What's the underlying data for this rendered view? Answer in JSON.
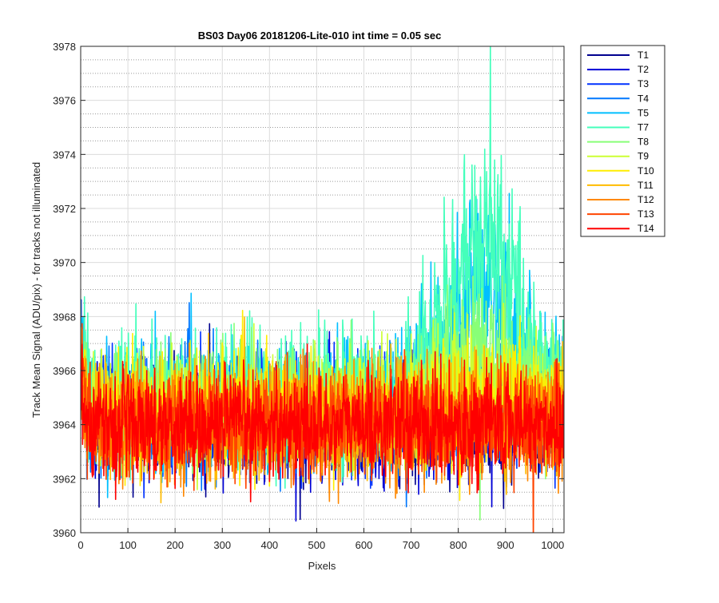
{
  "chart_data": {
    "type": "line",
    "title": "BS03 Day06 20181206-Lite-010 int time = 0.05 sec",
    "xlabel": "Pixels",
    "ylabel": "Track Mean Signal (ADU/pix) - for tracks not illuminated",
    "xlim": [
      0,
      1024
    ],
    "ylim": [
      3960,
      3978
    ],
    "xticks": [
      0,
      100,
      200,
      300,
      400,
      500,
      600,
      700,
      800,
      900,
      1000
    ],
    "yticks": [
      3960,
      3962,
      3964,
      3966,
      3968,
      3970,
      3972,
      3974,
      3976,
      3978
    ],
    "grid": "major and minor",
    "legend_position": "outside-right",
    "n_points_per_series": 1024,
    "series": [
      {
        "name": "T1",
        "color": "#00008f",
        "base": 3964.2,
        "noise": 1.0,
        "hump": 0.0
      },
      {
        "name": "T2",
        "color": "#0000d6",
        "base": 3964.1,
        "noise": 1.0,
        "hump": 0.0
      },
      {
        "name": "T3",
        "color": "#0032ff",
        "base": 3964.3,
        "noise": 1.0,
        "hump": 0.0
      },
      {
        "name": "T4",
        "color": "#0078ff",
        "base": 3964.5,
        "noise": 1.05,
        "hump": 0.5
      },
      {
        "name": "T5",
        "color": "#00bfff",
        "base": 3964.7,
        "noise": 1.1,
        "hump": 4.5
      },
      {
        "name": "T7",
        "color": "#44ffbb",
        "base": 3965.0,
        "noise": 1.15,
        "hump": 5.5
      },
      {
        "name": "T8",
        "color": "#88ff77",
        "base": 3964.8,
        "noise": 1.05,
        "hump": 1.8
      },
      {
        "name": "T9",
        "color": "#ccff33",
        "base": 3964.6,
        "noise": 1.0,
        "hump": 1.2
      },
      {
        "name": "T10",
        "color": "#ffee00",
        "base": 3964.4,
        "noise": 1.0,
        "hump": 0.4
      },
      {
        "name": "T11",
        "color": "#ffbb00",
        "base": 3964.2,
        "noise": 1.0,
        "hump": 0.0
      },
      {
        "name": "T12",
        "color": "#ff8800",
        "base": 3964.0,
        "noise": 1.0,
        "hump": 0.0
      },
      {
        "name": "T13",
        "color": "#ff4400",
        "base": 3964.0,
        "noise": 0.95,
        "hump": 0.0
      },
      {
        "name": "T14",
        "color": "#ff0000",
        "base": 3964.0,
        "noise": 0.95,
        "hump": 0.0
      }
    ]
  }
}
